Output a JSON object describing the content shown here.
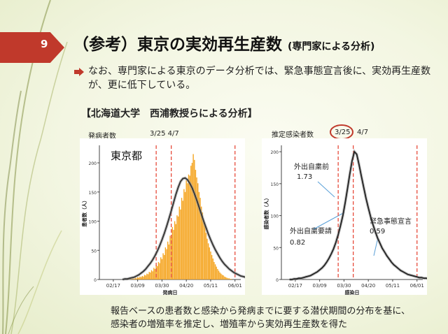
{
  "slide": {
    "number": "9",
    "title": "（参考）東京の実効再生産数",
    "title_sub": "(専門家による分析)",
    "bullet_text": "なお、専門家による東京のデータ分析では、緊急事態宣言後に、実効再生産数が、更に低下している。",
    "study_label": "【北海道大学　西浦教授らによる分析】",
    "footer_text": "報告ベースの患者数と感染から発病までに要する潜伏期間の分布を基に、感染者の増殖率を推定し、増殖率から実効再生産数を得た",
    "accent_color": "#c0392b",
    "bullet_icon": "arrow-bullet-icon"
  },
  "left_header": {
    "count_label": "発病者数",
    "dates": "3/25  4/7"
  },
  "right_header": {
    "count_label": "推定感染者数",
    "date_circled": "3/25",
    "date_other": "4/7"
  },
  "annotations": {
    "before": "外出自粛前",
    "before_value": "1.73",
    "request": "外出自粛要請",
    "request_value": "0.82",
    "emergency": "緊急事態宣言",
    "emergency_value": "0.59"
  },
  "chart_data": [
    {
      "type": "bar",
      "panel_label": "東京都",
      "xlabel": "発病日",
      "ylabel": "患者数（人）",
      "xticks": [
        "02/17",
        "03/09",
        "03/30",
        "04/20",
        "05/11",
        "06/01"
      ],
      "yticks": [
        "0",
        "50",
        "100",
        "150",
        "200"
      ],
      "ylim": [
        0,
        230
      ],
      "bar_start": "03/01",
      "bar_values": [
        1,
        0,
        2,
        1,
        2,
        1,
        3,
        2,
        4,
        3,
        5,
        4,
        6,
        5,
        8,
        7,
        10,
        9,
        13,
        12,
        16,
        14,
        20,
        18,
        25,
        23,
        30,
        28,
        38,
        35,
        45,
        42,
        55,
        52,
        65,
        60,
        75,
        72,
        90,
        85,
        100,
        95,
        110,
        108,
        125,
        120,
        140,
        135,
        155,
        150,
        170,
        165,
        180,
        178,
        195,
        200,
        215,
        205,
        188,
        175,
        165,
        150,
        140,
        125,
        115,
        100,
        92,
        80,
        70,
        62,
        55,
        48,
        42,
        36,
        30,
        26,
        22,
        18,
        15,
        12,
        10,
        8,
        7,
        5,
        4,
        3,
        2,
        2,
        1,
        1
      ],
      "curve_values": [
        0,
        1,
        1,
        2,
        3,
        4,
        6,
        8,
        11,
        14,
        18,
        23,
        28,
        34,
        41,
        49,
        58,
        68,
        79,
        91,
        104,
        118,
        132,
        146,
        158,
        168,
        173,
        174,
        171,
        165,
        157,
        147,
        136,
        124,
        112,
        100,
        89,
        78,
        68,
        59,
        51,
        44,
        37,
        31,
        26,
        22,
        18,
        15,
        12,
        10,
        8,
        6,
        5,
        4,
        3,
        2,
        2,
        1,
        1,
        1,
        0,
        0
      ],
      "vlines": [
        "03/25",
        "04/07",
        "06/01"
      ],
      "bar_color": "#f5a623",
      "curve_color": "#333333"
    },
    {
      "type": "line",
      "xlabel": "感染日",
      "ylabel": "感染者数（人）",
      "xticks": [
        "02/17",
        "03/09",
        "03/30",
        "04/20",
        "05/11",
        "06/01"
      ],
      "yticks": [
        "0",
        "50",
        "100",
        "150",
        "200"
      ],
      "ylim": [
        0,
        210
      ],
      "curve_values": [
        0,
        0,
        1,
        1,
        2,
        2,
        3,
        4,
        5,
        6,
        8,
        10,
        12,
        15,
        18,
        22,
        27,
        33,
        40,
        48,
        58,
        70,
        84,
        100,
        120,
        142,
        165,
        186,
        200,
        196,
        180,
        162,
        144,
        127,
        112,
        98,
        86,
        75,
        65,
        57,
        49,
        43,
        37,
        32,
        27,
        23,
        20,
        17,
        14,
        12,
        10,
        8,
        7,
        6,
        5,
        4,
        3,
        3,
        2,
        2,
        1,
        1,
        1,
        1,
        0,
        0
      ],
      "vlines": [
        "03/25",
        "04/07",
        "06/01"
      ],
      "curve_color": "#222222"
    }
  ]
}
